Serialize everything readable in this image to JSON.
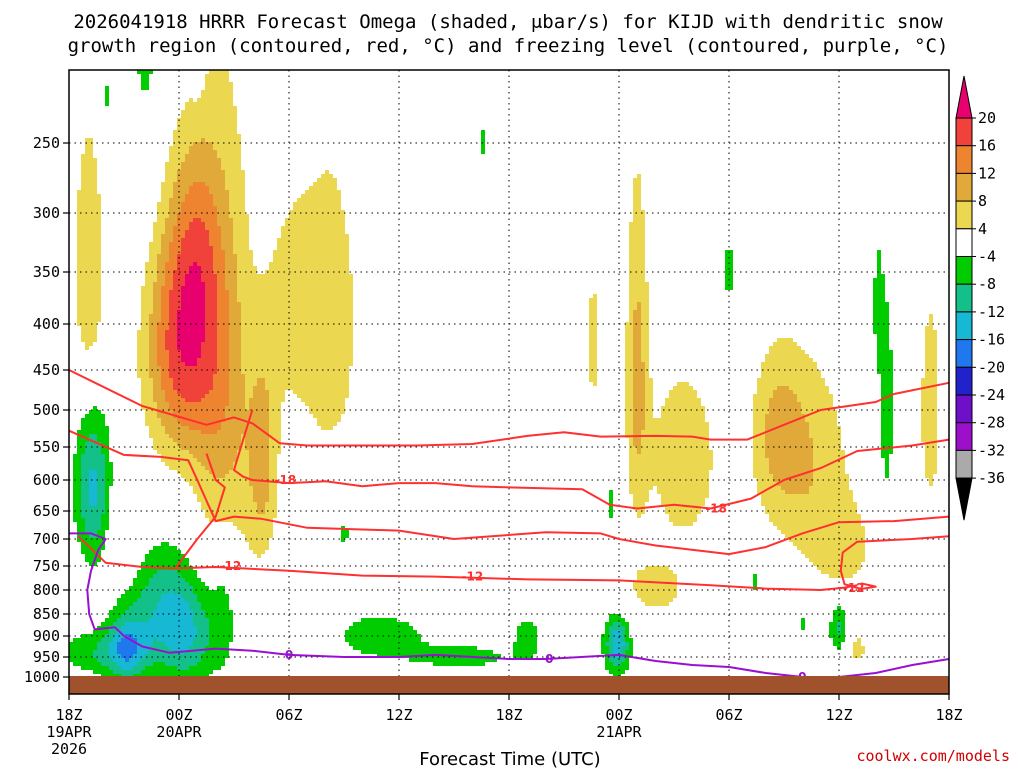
{
  "title": {
    "line1": "2026041918 HRRR Forecast Omega (shaded, μbar/s) for KIJD with dendritic snow",
    "line2": "growth region (contoured, red, °C) and freezing level (contoured, purple, °C)"
  },
  "credit": "coolwx.com/models",
  "chart_data": {
    "type": "time-height cross section",
    "title": "2026041918 HRRR Forecast Omega (shaded, μbar/s) for KIJD with dendritic snow growth region (contoured, red, °C) and freezing level (contoured, purple, °C)",
    "xlabel": "Forecast Time (UTC)",
    "ylabel": "Pressure (hPa)",
    "x_hours_range": [
      0,
      48
    ],
    "y_pressure_range": [
      1000,
      200
    ],
    "x_ticks": [
      {
        "hour": 0,
        "lines": [
          "18Z",
          "19APR",
          "2026"
        ]
      },
      {
        "hour": 6,
        "lines": [
          "00Z",
          "20APR"
        ]
      },
      {
        "hour": 12,
        "lines": [
          "06Z"
        ]
      },
      {
        "hour": 18,
        "lines": [
          "12Z"
        ]
      },
      {
        "hour": 24,
        "lines": [
          "18Z"
        ]
      },
      {
        "hour": 30,
        "lines": [
          "00Z",
          "21APR"
        ]
      },
      {
        "hour": 36,
        "lines": [
          "06Z"
        ]
      },
      {
        "hour": 42,
        "lines": [
          "12Z"
        ]
      },
      {
        "hour": 48,
        "lines": [
          "18Z"
        ]
      }
    ],
    "y_ticks": [
      {
        "p": 250,
        "label": "250"
      },
      {
        "p": 300,
        "label": "300"
      },
      {
        "p": 350,
        "label": "350"
      },
      {
        "p": 400,
        "label": "400"
      },
      {
        "p": 450,
        "label": "450"
      },
      {
        "p": 500,
        "label": "500"
      },
      {
        "p": 550,
        "label": "550"
      },
      {
        "p": 600,
        "label": "600"
      },
      {
        "p": 650,
        "label": "650"
      },
      {
        "p": 700,
        "label": "700"
      },
      {
        "p": 750,
        "label": "750"
      },
      {
        "p": 800,
        "label": "800"
      },
      {
        "p": 850,
        "label": "850"
      },
      {
        "p": 900,
        "label": "900"
      },
      {
        "p": 950,
        "label": "950"
      },
      {
        "p": 1000,
        "label": "1000"
      }
    ],
    "colorbar": {
      "labels": [
        "20",
        "16",
        "12",
        "8",
        "4",
        "-4",
        "-8",
        "-12",
        "-16",
        "-20",
        "-24",
        "-28",
        "-32",
        "-36"
      ],
      "bins": [
        {
          "color": "#e8006e"
        },
        {
          "color": "#f0413a"
        },
        {
          "color": "#ee8430"
        },
        {
          "color": "#e0a939"
        },
        {
          "color": "#ecd850"
        },
        {
          "color": "#ffffff"
        },
        {
          "color": "#00cc00"
        },
        {
          "color": "#14c08a"
        },
        {
          "color": "#16b8d4"
        },
        {
          "color": "#1f78ee"
        },
        {
          "color": "#2222cc"
        },
        {
          "color": "#6e10c8"
        },
        {
          "color": "#9c10cc"
        },
        {
          "color": "#aaaaaa"
        }
      ]
    },
    "omega_blobs": [
      {
        "t": 6.2,
        "p": 420,
        "st": 1.4,
        "sp": 95,
        "v": 19
      },
      {
        "t": 7.0,
        "p": 320,
        "st": 0.9,
        "sp": 60,
        "v": 6
      },
      {
        "t": 8.5,
        "p": 500,
        "st": 1.1,
        "sp": 220,
        "v": 9
      },
      {
        "t": 10.6,
        "p": 570,
        "st": 0.6,
        "sp": 110,
        "v": 9
      },
      {
        "t": 1.1,
        "p": 350,
        "st": 0.6,
        "sp": 90,
        "v": 8
      },
      {
        "t": 14.2,
        "p": 400,
        "st": 1.2,
        "sp": 120,
        "v": 7
      },
      {
        "t": 12.0,
        "p": 380,
        "st": 0.9,
        "sp": 80,
        "v": 5
      },
      {
        "t": 31.0,
        "p": 450,
        "st": 0.45,
        "sp": 140,
        "v": 9
      },
      {
        "t": 28.6,
        "p": 420,
        "st": 0.35,
        "sp": 80,
        "v": 5
      },
      {
        "t": 33.5,
        "p": 570,
        "st": 1.4,
        "sp": 100,
        "v": 7
      },
      {
        "t": 40.0,
        "p": 570,
        "st": 1.8,
        "sp": 110,
        "v": 8
      },
      {
        "t": 38.6,
        "p": 520,
        "st": 0.9,
        "sp": 70,
        "v": 5
      },
      {
        "t": 42.3,
        "p": 720,
        "st": 1.3,
        "sp": 70,
        "v": 5
      },
      {
        "t": 47.0,
        "p": 500,
        "st": 0.5,
        "sp": 120,
        "v": 6
      },
      {
        "t": 32.0,
        "p": 800,
        "st": 1.4,
        "sp": 50,
        "v": 5
      },
      {
        "t": 3.0,
        "p": 700,
        "st": 0.6,
        "sp": 60,
        "v": 5
      },
      {
        "t": 43.0,
        "p": 930,
        "st": 0.5,
        "sp": 35,
        "v": 5
      },
      {
        "t": 1.3,
        "p": 610,
        "st": 0.7,
        "sp": 90,
        "v": -13
      },
      {
        "t": 5.2,
        "p": 830,
        "st": 1.5,
        "sp": 90,
        "v": -10
      },
      {
        "t": 3.2,
        "p": 930,
        "st": 0.8,
        "sp": 60,
        "v": -12
      },
      {
        "t": 6.5,
        "p": 910,
        "st": 1.2,
        "sp": 80,
        "v": -9
      },
      {
        "t": 1.5,
        "p": 940,
        "st": 1.6,
        "sp": 40,
        "v": -7
      },
      {
        "t": 8.5,
        "p": 820,
        "st": 0.6,
        "sp": 120,
        "v": -6
      },
      {
        "t": 4.2,
        "p": 130,
        "st": 0.7,
        "sp": 120,
        "v": -6
      },
      {
        "t": 7.0,
        "p": 185,
        "st": 0.2,
        "sp": 20,
        "v": -5
      },
      {
        "t": 5.2,
        "p": 120,
        "st": 0.15,
        "sp": 25,
        "v": -5
      },
      {
        "t": 17.0,
        "p": 900,
        "st": 1.8,
        "sp": 40,
        "v": -7
      },
      {
        "t": 21.5,
        "p": 950,
        "st": 2.2,
        "sp": 25,
        "v": -6
      },
      {
        "t": 25.0,
        "p": 900,
        "st": 0.6,
        "sp": 40,
        "v": -6
      },
      {
        "t": 29.9,
        "p": 920,
        "st": 0.5,
        "sp": 50,
        "v": -15
      },
      {
        "t": 44.6,
        "p": 500,
        "st": 0.35,
        "sp": 130,
        "v": -6
      },
      {
        "t": 44.1,
        "p": 380,
        "st": 0.2,
        "sp": 50,
        "v": -5
      },
      {
        "t": 36.0,
        "p": 350,
        "st": 0.4,
        "sp": 35,
        "v": -5
      },
      {
        "t": 42.0,
        "p": 880,
        "st": 0.4,
        "sp": 45,
        "v": -9
      },
      {
        "t": 37.5,
        "p": 780,
        "st": 0.3,
        "sp": 40,
        "v": -5
      },
      {
        "t": 40.0,
        "p": 870,
        "st": 0.3,
        "sp": 30,
        "v": -5
      },
      {
        "t": 15.0,
        "p": 690,
        "st": 0.3,
        "sp": 30,
        "v": -5
      },
      {
        "t": 29.6,
        "p": 640,
        "st": 0.3,
        "sp": 35,
        "v": -5
      },
      {
        "t": 2.0,
        "p": 220,
        "st": 0.3,
        "sp": 30,
        "v": -5
      },
      {
        "t": 3.5,
        "p": 350,
        "st": 0.15,
        "sp": 25,
        "v": -5
      },
      {
        "t": 22.5,
        "p": 250,
        "st": 0.2,
        "sp": 15,
        "v": -5
      }
    ],
    "contours": [
      {
        "name": "dgz-top",
        "color": "#ff3030",
        "label": "-18",
        "points": [
          [
            0,
            450
          ],
          [
            4,
            495
          ],
          [
            7.5,
            520
          ],
          [
            9,
            510
          ],
          [
            10,
            518
          ],
          [
            11.5,
            545
          ],
          [
            13,
            548
          ],
          [
            16,
            548
          ],
          [
            19,
            548
          ],
          [
            22,
            546
          ],
          [
            25,
            535
          ],
          [
            27,
            530
          ],
          [
            29,
            536
          ],
          [
            32,
            535
          ],
          [
            34,
            536
          ],
          [
            35,
            540
          ],
          [
            37,
            540
          ],
          [
            39,
            520
          ],
          [
            41,
            500
          ],
          [
            44,
            490
          ],
          [
            45,
            480
          ],
          [
            48,
            466
          ]
        ]
      },
      {
        "name": "dgz-right",
        "color": "#ff3030",
        "points": [
          [
            48,
            540
          ],
          [
            46,
            548
          ],
          [
            43,
            556
          ],
          [
            41,
            582
          ],
          [
            39,
            600
          ],
          [
            37.2,
            630
          ],
          [
            35,
            646
          ],
          [
            33,
            640
          ],
          [
            31,
            646
          ],
          [
            29.5,
            640
          ],
          [
            28,
            615
          ],
          [
            24,
            612
          ],
          [
            22,
            610
          ],
          [
            20,
            605
          ],
          [
            18,
            605
          ],
          [
            16,
            610
          ],
          [
            14,
            602
          ],
          [
            12,
            605
          ],
          [
            10,
            600
          ],
          [
            9.5,
            595
          ],
          [
            9,
            585
          ],
          [
            9.5,
            540
          ],
          [
            10,
            500
          ]
        ]
      },
      {
        "name": "dgz-12",
        "color": "#ff3030",
        "label": "-12",
        "points": [
          [
            0,
            528
          ],
          [
            3,
            562
          ],
          [
            5,
            565
          ],
          [
            6.5,
            570
          ],
          [
            7,
            600
          ],
          [
            7.6,
            640
          ],
          [
            8,
            668
          ],
          [
            9,
            660
          ],
          [
            10.5,
            664
          ],
          [
            13,
            680
          ],
          [
            18,
            685
          ],
          [
            21,
            700
          ],
          [
            26,
            688
          ],
          [
            29,
            690
          ],
          [
            30,
            700
          ],
          [
            32,
            712
          ],
          [
            36,
            728
          ],
          [
            38,
            715
          ],
          [
            40,
            690
          ],
          [
            42,
            670
          ],
          [
            45,
            668
          ],
          [
            48,
            660
          ]
        ]
      },
      {
        "name": "dgz-12-lower",
        "color": "#ff3030",
        "points": [
          [
            7.5,
            560
          ],
          [
            8,
            600
          ],
          [
            8.5,
            612
          ],
          [
            8,
            660
          ],
          [
            7,
            700
          ],
          [
            5.8,
            755
          ],
          [
            4,
            752
          ],
          [
            2,
            744
          ],
          [
            0.5,
            695
          ]
        ]
      },
      {
        "name": "dgz-12-base",
        "color": "#ff3030",
        "points": [
          [
            5.8,
            755
          ],
          [
            8,
            752
          ],
          [
            12,
            760
          ],
          [
            16,
            770
          ],
          [
            20,
            772
          ],
          [
            25,
            778
          ],
          [
            30,
            780
          ],
          [
            35,
            790
          ],
          [
            38,
            797
          ],
          [
            41,
            800
          ],
          [
            42.3,
            795
          ],
          [
            43,
            790
          ]
        ]
      },
      {
        "name": "dgz-12-right",
        "color": "#ff3030",
        "points": [
          [
            48,
            695
          ],
          [
            46,
            700
          ],
          [
            43,
            705
          ],
          [
            42.2,
            725
          ],
          [
            42.1,
            760
          ],
          [
            42.3,
            788
          ],
          [
            43.2,
            798
          ],
          [
            44,
            793
          ],
          [
            43.2,
            786
          ]
        ]
      },
      {
        "name": "freezing-level",
        "color": "#9810d0",
        "label": "0",
        "points": [
          [
            0,
            690
          ],
          [
            1.2,
            690
          ],
          [
            2,
            700
          ],
          [
            1.6,
            720
          ],
          [
            1.2,
            760
          ],
          [
            1.0,
            800
          ],
          [
            1.1,
            850
          ],
          [
            1.4,
            885
          ],
          [
            2.5,
            880
          ],
          [
            3,
            900
          ],
          [
            4,
            925
          ],
          [
            5.5,
            940
          ],
          [
            8,
            930
          ],
          [
            10,
            935
          ],
          [
            12,
            945
          ],
          [
            15,
            950
          ],
          [
            18,
            950
          ],
          [
            20,
            945
          ],
          [
            24,
            955
          ],
          [
            26,
            955
          ],
          [
            30,
            945
          ],
          [
            32,
            960
          ],
          [
            34,
            970
          ],
          [
            36,
            975
          ],
          [
            38,
            990
          ],
          [
            40,
            1000
          ],
          [
            42,
            1000
          ],
          [
            44,
            990
          ],
          [
            46,
            970
          ],
          [
            48,
            955
          ]
        ]
      }
    ]
  }
}
